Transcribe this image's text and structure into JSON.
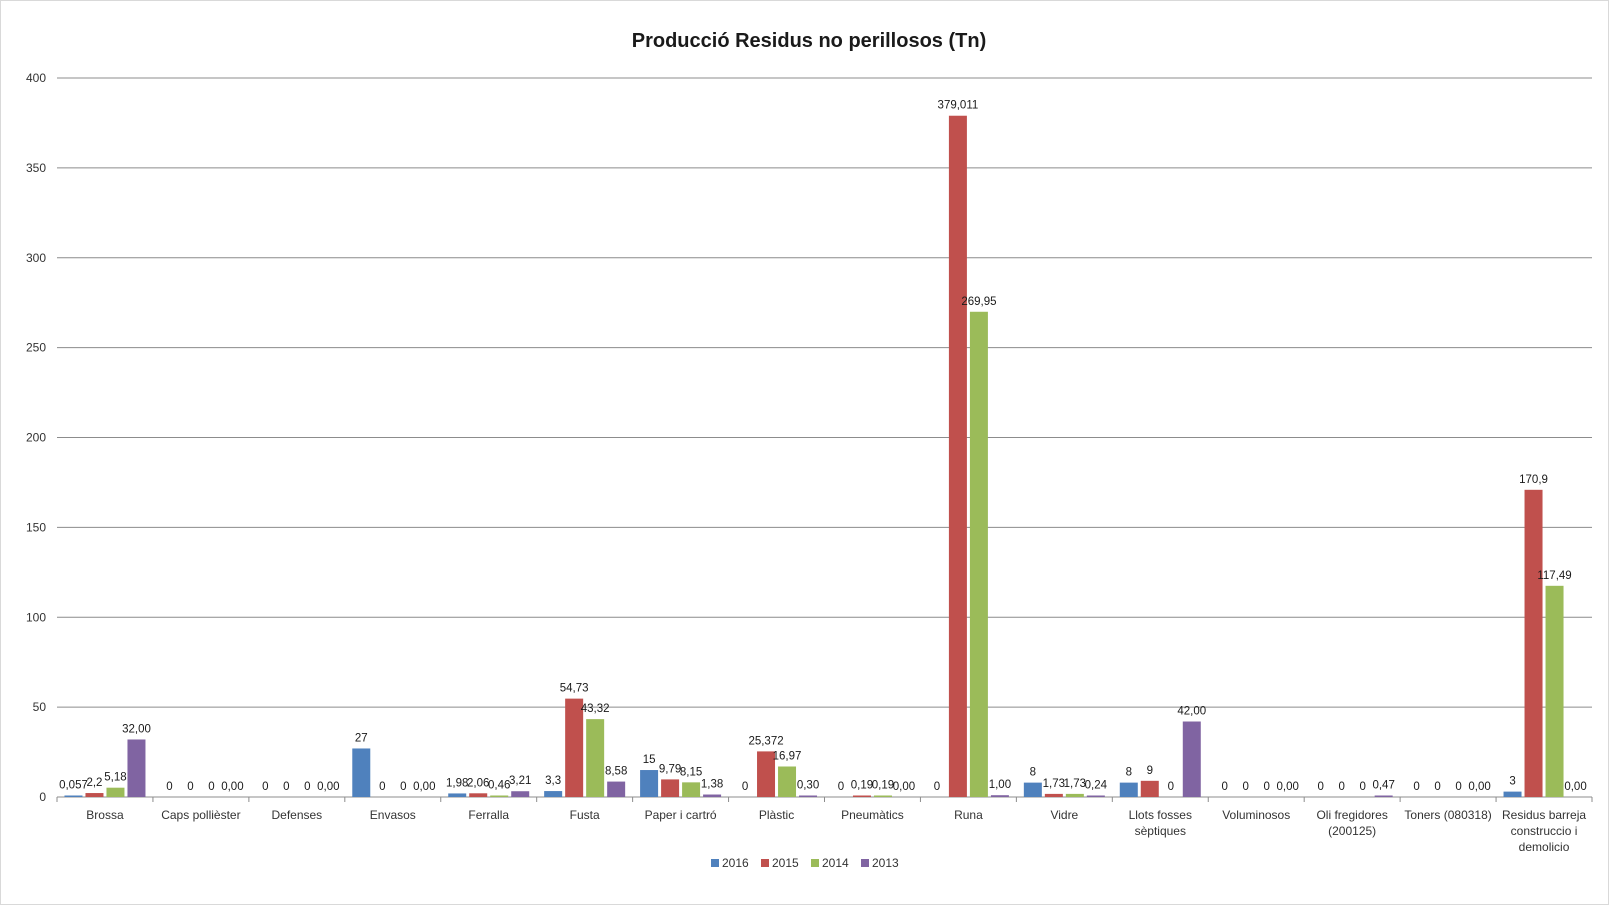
{
  "chart_data": {
    "type": "bar",
    "title": "Producció Residus no perillosos (Tn)",
    "xlabel": "",
    "ylabel": "",
    "ylim": [
      0,
      400
    ],
    "yticks": [
      "0",
      "50",
      "100",
      "150",
      "200",
      "250",
      "300",
      "350",
      "400"
    ],
    "ytick_values": [
      0,
      50,
      100,
      150,
      200,
      250,
      300,
      350,
      400
    ],
    "grid": true,
    "legend_position": "bottom",
    "categories": [
      [
        "Brossa"
      ],
      [
        "Caps pollièster"
      ],
      [
        "Defenses"
      ],
      [
        "Envasos"
      ],
      [
        "Ferralla"
      ],
      [
        "Fusta"
      ],
      [
        "Paper i cartró"
      ],
      [
        "Plàstic"
      ],
      [
        "Pneumàtics"
      ],
      [
        "Runa"
      ],
      [
        "Vidre"
      ],
      [
        "Llots fosses",
        "sèptiques"
      ],
      [
        "Voluminosos"
      ],
      [
        "Oli fregidores",
        "(200125)"
      ],
      [
        "Toners (080318)"
      ],
      [
        "Residus barreja",
        "construccio i",
        "demolicio"
      ]
    ],
    "series": [
      {
        "name": "2016",
        "color": "#4f81bd",
        "values": [
          0.057,
          0,
          0,
          27,
          1.98,
          3.3,
          15,
          0,
          0,
          0,
          8,
          8,
          0,
          0,
          0,
          3
        ],
        "labels": [
          "0,057",
          "0",
          "0",
          "27",
          "1,98",
          "3,3",
          "15",
          "0",
          "0",
          "0",
          "8",
          "8",
          "0",
          "0",
          "0",
          "3"
        ]
      },
      {
        "name": "2015",
        "color": "#c0504d",
        "values": [
          2.2,
          0,
          0,
          0,
          2.06,
          54.73,
          9.79,
          25.372,
          0.19,
          379.011,
          1.73,
          9,
          0,
          0,
          0,
          170.9
        ],
        "labels": [
          "2,2",
          "0",
          "0",
          "0",
          "2,06",
          "54,73",
          "9,79",
          "25,372",
          "0,19",
          "379,011",
          "1,73",
          "9",
          "0",
          "0",
          "0",
          "170,9"
        ]
      },
      {
        "name": "2014",
        "color": "#9bbb59",
        "values": [
          5.18,
          0,
          0,
          0,
          0.46,
          43.32,
          8.15,
          16.97,
          0.19,
          269.95,
          1.73,
          0,
          0,
          0,
          0,
          117.49
        ],
        "labels": [
          "5,18",
          "0",
          "0",
          "0",
          "0,46",
          "43,32",
          "8,15",
          "16,97",
          "0,19",
          "269,95",
          "1,73",
          "0",
          "0",
          "0",
          "0",
          "117,49"
        ]
      },
      {
        "name": "2013",
        "color": "#8064a2",
        "values": [
          32.0,
          0,
          0,
          0,
          3.21,
          8.58,
          1.38,
          0.3,
          0,
          1.0,
          0.24,
          42.0,
          0,
          0.47,
          0,
          0
        ],
        "labels": [
          "32,00",
          "0,00",
          "0,00",
          "0,00",
          "3,21",
          "8,58",
          "1,38",
          "0,30",
          "0,00",
          "1,00",
          "0,24",
          "42,00",
          "0,00",
          "0,47",
          "0,00",
          "0,00"
        ]
      }
    ]
  }
}
